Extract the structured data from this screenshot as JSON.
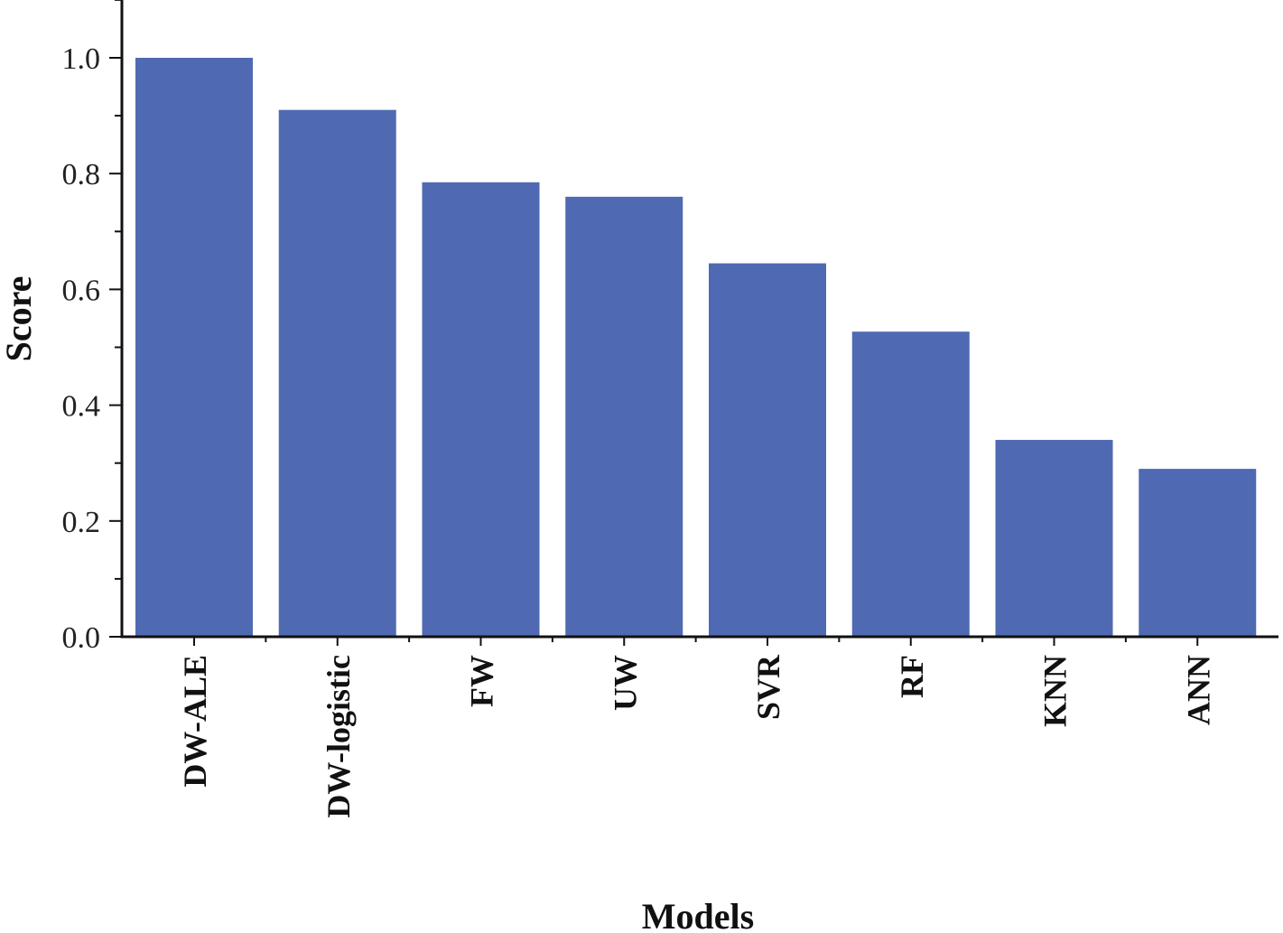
{
  "chart_data": {
    "type": "bar",
    "title": "",
    "xlabel": "Models",
    "ylabel": "Score",
    "categories": [
      "DW-ALE",
      "DW-logistic",
      "FW",
      "UW",
      "SVR",
      "RF",
      "KNN",
      "ANN"
    ],
    "values": [
      1.0,
      0.91,
      0.785,
      0.76,
      0.645,
      0.527,
      0.34,
      0.29
    ],
    "ylim": [
      0,
      1.1
    ],
    "yticks": [
      "0.0",
      "0.2",
      "0.4",
      "0.6",
      "0.8",
      "1.0"
    ],
    "ytick_values": [
      0,
      0.2,
      0.4,
      0.6,
      0.8,
      1.0
    ],
    "grid": false,
    "legend": "none",
    "bar_color": "#4f6ab2",
    "axis_color": "#111111"
  }
}
